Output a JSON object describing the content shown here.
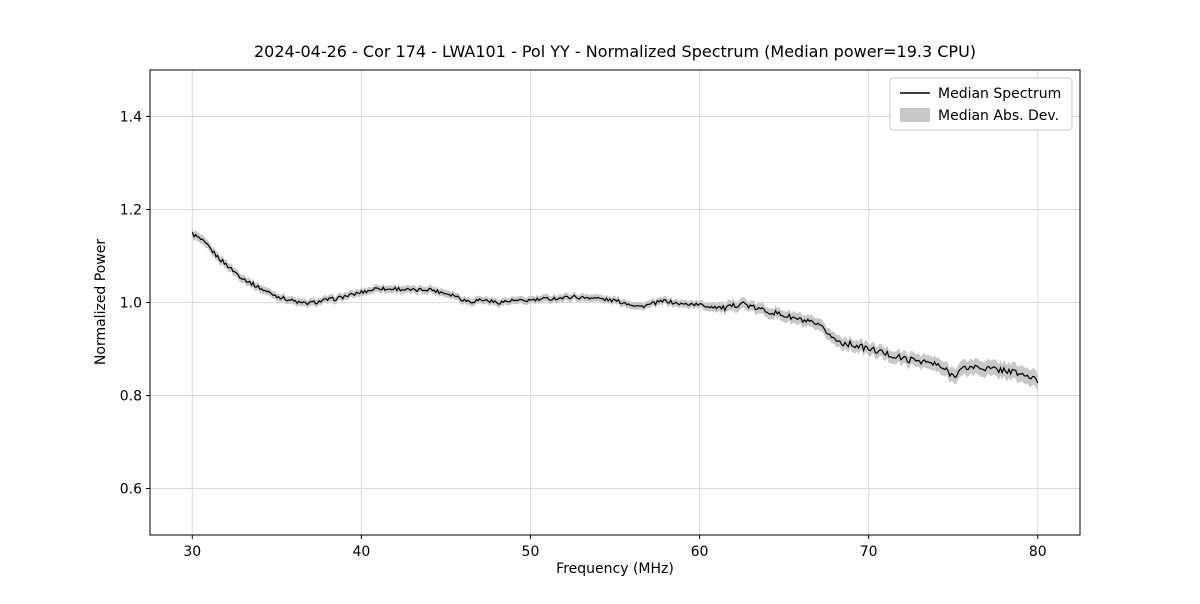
{
  "chart_data": {
    "type": "line",
    "title": "2024-04-26 - Cor 174 - LWA101 - Pol YY - Normalized Spectrum (Median power=19.3 CPU)",
    "xlabel": "Frequency (MHz)",
    "ylabel": "Normalized Power",
    "xlim": [
      27.5,
      82.5
    ],
    "ylim": [
      0.5,
      1.5
    ],
    "x_ticks": [
      30,
      40,
      50,
      60,
      70,
      80
    ],
    "x_tick_labels": [
      "30",
      "40",
      "50",
      "60",
      "70",
      "80"
    ],
    "y_ticks": [
      0.6,
      0.8,
      1.0,
      1.2,
      1.4
    ],
    "y_tick_labels": [
      "0.6",
      "0.8",
      "1.0",
      "1.2",
      "1.4"
    ],
    "grid": true,
    "legend": {
      "position": "upper right",
      "entries": [
        {
          "label": "Median Spectrum",
          "type": "line",
          "color": "#000000"
        },
        {
          "label": "Median Abs. Dev.",
          "type": "patch",
          "color": "#c8c8c8"
        }
      ]
    },
    "series": [
      {
        "name": "Median Spectrum",
        "x_start": 30.0,
        "x_step": 0.5,
        "values": [
          1.148,
          1.135,
          1.118,
          1.098,
          1.082,
          1.066,
          1.052,
          1.041,
          1.031,
          1.022,
          1.014,
          1.008,
          1.003,
          0.998,
          0.999,
          1.002,
          1.006,
          1.008,
          1.013,
          1.017,
          1.022,
          1.026,
          1.032,
          1.028,
          1.03,
          1.028,
          1.026,
          1.027,
          1.029,
          1.024,
          1.02,
          1.016,
          1.006,
          1.002,
          1.006,
          1.004,
          1.0,
          1.002,
          1.004,
          1.003,
          1.005,
          1.006,
          1.008,
          1.009,
          1.01,
          1.013,
          1.01,
          1.011,
          1.009,
          1.006,
          1.004,
          1.0,
          0.996,
          0.991,
          0.995,
          1.0,
          1.004,
          0.999,
          0.996,
          0.997,
          0.995,
          0.992,
          0.991,
          0.987,
          0.992,
          1.0,
          0.991,
          0.986,
          0.982,
          0.977,
          0.972,
          0.967,
          0.962,
          0.957,
          0.95,
          0.938,
          0.92,
          0.913,
          0.91,
          0.905,
          0.9,
          0.896,
          0.89,
          0.885,
          0.88,
          0.876,
          0.876,
          0.871,
          0.866,
          0.856,
          0.843,
          0.856,
          0.861,
          0.861,
          0.858,
          0.856,
          0.855,
          0.851,
          0.846,
          0.84,
          0.831
        ]
      }
    ],
    "band": {
      "name": "Median Abs. Dev.",
      "x": [
        30,
        35,
        45,
        55,
        60,
        62,
        63,
        65,
        68,
        70,
        73,
        75,
        78,
        80
      ],
      "halfwidth": [
        0.01,
        0.008,
        0.008,
        0.008,
        0.008,
        0.012,
        0.011,
        0.012,
        0.013,
        0.013,
        0.014,
        0.016,
        0.017,
        0.018
      ]
    },
    "noise_amplitude": 0.004,
    "colors": {
      "line": "#000000",
      "band": "#c8c8c8",
      "grid": "#dcdcdc",
      "axes": "#000000",
      "background": "#ffffff"
    }
  }
}
